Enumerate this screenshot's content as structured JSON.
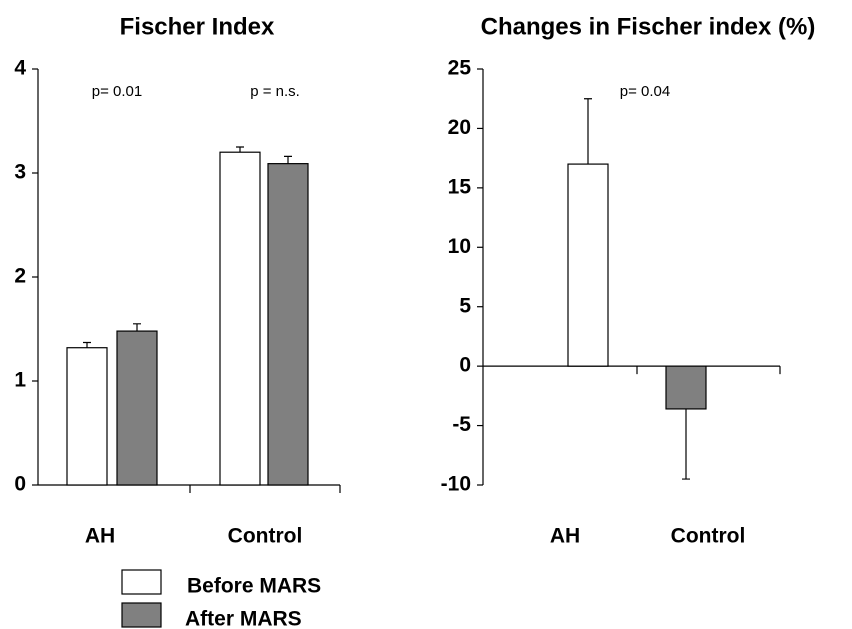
{
  "chart_data": [
    {
      "type": "bar",
      "title": "Fischer Index",
      "categories": [
        "AH",
        "Control"
      ],
      "series": [
        {
          "name": "Before MARS",
          "color": "#ffffff",
          "values": [
            1.32,
            3.2
          ],
          "errors": [
            0.05,
            0.05
          ]
        },
        {
          "name": "After MARS",
          "color": "#808080",
          "values": [
            1.48,
            3.09
          ],
          "errors": [
            0.07,
            0.07
          ]
        }
      ],
      "ylim": [
        0,
        4
      ],
      "yticks": [
        0,
        1,
        2,
        3,
        4
      ],
      "annotations": [
        "p= 0.01",
        "p = n.s."
      ],
      "legend": "bottom"
    },
    {
      "type": "bar",
      "title": "Changes in Fischer index (%)",
      "categories": [
        "AH",
        "Control"
      ],
      "values": [
        17,
        -3.6
      ],
      "errors": [
        5.5,
        5.9
      ],
      "colors": [
        "#ffffff",
        "#808080"
      ],
      "ylim": [
        -10,
        25
      ],
      "yticks": [
        -10,
        -5,
        0,
        5,
        10,
        15,
        20,
        25
      ],
      "annotations": [
        "p= 0.04"
      ]
    }
  ]
}
